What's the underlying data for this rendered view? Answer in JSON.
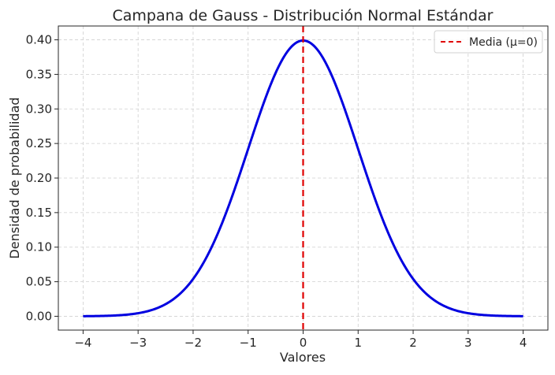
{
  "chart_data": {
    "type": "line",
    "title": "Campana de Gauss - Distribución Normal Estándar",
    "xlabel": "Valores",
    "ylabel": "Densidad de probabilidad",
    "xlim": [
      -4.45,
      4.45
    ],
    "ylim": [
      -0.02,
      0.42
    ],
    "grid": true,
    "grid_style": "dashed",
    "legend_position": "top-right",
    "x_ticks": [
      -4,
      -3,
      -2,
      -1,
      0,
      1,
      2,
      3,
      4
    ],
    "x_tick_labels": [
      "−4",
      "−3",
      "−2",
      "−1",
      "0",
      "1",
      "2",
      "3",
      "4"
    ],
    "y_ticks": [
      0.0,
      0.05,
      0.1,
      0.15,
      0.2,
      0.25,
      0.3,
      0.35,
      0.4
    ],
    "y_tick_labels": [
      "0.00",
      "0.05",
      "0.10",
      "0.15",
      "0.20",
      "0.25",
      "0.30",
      "0.35",
      "0.40"
    ],
    "series": [
      {
        "color": "#0000e0",
        "x": [
          -4.0,
          -3.5,
          -3.0,
          -2.5,
          -2.0,
          -1.75,
          -1.5,
          -1.25,
          -1.0,
          -0.75,
          -0.5,
          -0.25,
          0.0,
          0.25,
          0.5,
          0.75,
          1.0,
          1.25,
          1.5,
          1.75,
          2.0,
          2.5,
          3.0,
          3.5,
          4.0
        ],
        "y": [
          0.0001,
          0.0009,
          0.0044,
          0.0175,
          0.054,
          0.0863,
          0.1295,
          0.1826,
          0.242,
          0.3011,
          0.3521,
          0.3867,
          0.3989,
          0.3867,
          0.3521,
          0.3011,
          0.242,
          0.1826,
          0.1295,
          0.0863,
          0.054,
          0.0175,
          0.0044,
          0.0009,
          0.0001
        ]
      }
    ],
    "reference_lines": [
      {
        "name": "Media (μ=0)",
        "orientation": "vertical",
        "x": 0,
        "color": "#e00000",
        "style": "dashed"
      }
    ],
    "legend": [
      {
        "label": "Media (μ=0)",
        "color": "#e00000",
        "style": "dashed"
      }
    ]
  }
}
